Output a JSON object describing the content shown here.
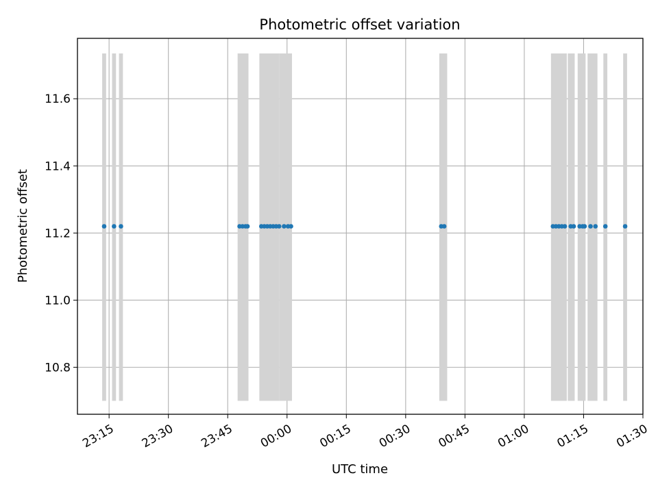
{
  "chart_data": {
    "type": "scatter",
    "title": "Photometric offset variation",
    "xlabel": "UTC time",
    "ylabel": "Photometric offset",
    "grid": true,
    "x_axis": {
      "kind": "time",
      "range": [
        "23:07",
        "01:30"
      ],
      "ticks": [
        "23:15",
        "23:30",
        "23:45",
        "00:00",
        "00:15",
        "00:30",
        "00:45",
        "01:00",
        "01:15",
        "01:30"
      ]
    },
    "y_axis": {
      "range": [
        10.66,
        11.78
      ],
      "ticks": [
        "10.8",
        "11.0",
        "11.2",
        "11.4",
        "11.6"
      ]
    },
    "shaded_intervals": {
      "color": "#d3d3d3",
      "y_range": [
        10.7,
        11.735
      ],
      "intervals": [
        [
          "23:13:15",
          "23:14:15"
        ],
        [
          "23:15:45",
          "23:16:45"
        ],
        [
          "23:17:30",
          "23:18:30"
        ],
        [
          "23:47:30",
          "23:50:15"
        ],
        [
          "23:53:00",
          "23:58:00"
        ],
        [
          "23:58:00",
          "00:01:15"
        ],
        [
          "00:38:30",
          "00:40:30"
        ],
        [
          "01:06:45",
          "01:10:45"
        ],
        [
          "01:11:00",
          "01:12:45"
        ],
        [
          "01:13:30",
          "01:15:30"
        ],
        [
          "01:16:00",
          "01:18:30"
        ],
        [
          "01:20:00",
          "01:21:00"
        ],
        [
          "01:25:00",
          "01:26:00"
        ]
      ]
    },
    "series": [
      {
        "color": "#1f77b4",
        "x": [
          "23:13:45",
          "23:16:15",
          "23:18:00",
          "23:48:00",
          "23:48:45",
          "23:49:30",
          "23:50:00",
          "23:53:30",
          "23:54:15",
          "23:55:00",
          "23:55:45",
          "23:56:30",
          "23:57:15",
          "23:58:00",
          "23:59:15",
          "00:00:15",
          "00:01:00",
          "00:39:00",
          "00:39:45",
          "01:07:15",
          "01:08:00",
          "01:08:45",
          "01:09:30",
          "01:10:15",
          "01:11:45",
          "01:12:30",
          "01:14:00",
          "01:14:45",
          "01:15:15",
          "01:16:45",
          "01:18:00",
          "01:20:30",
          "01:25:30"
        ],
        "y": [
          11.22,
          11.22,
          11.22,
          11.22,
          11.22,
          11.22,
          11.22,
          11.22,
          11.22,
          11.22,
          11.22,
          11.22,
          11.22,
          11.22,
          11.22,
          11.22,
          11.22,
          11.22,
          11.22,
          11.22,
          11.22,
          11.22,
          11.22,
          11.22,
          11.22,
          11.22,
          11.22,
          11.22,
          11.22,
          11.22,
          11.22,
          11.22,
          11.22
        ]
      }
    ]
  }
}
